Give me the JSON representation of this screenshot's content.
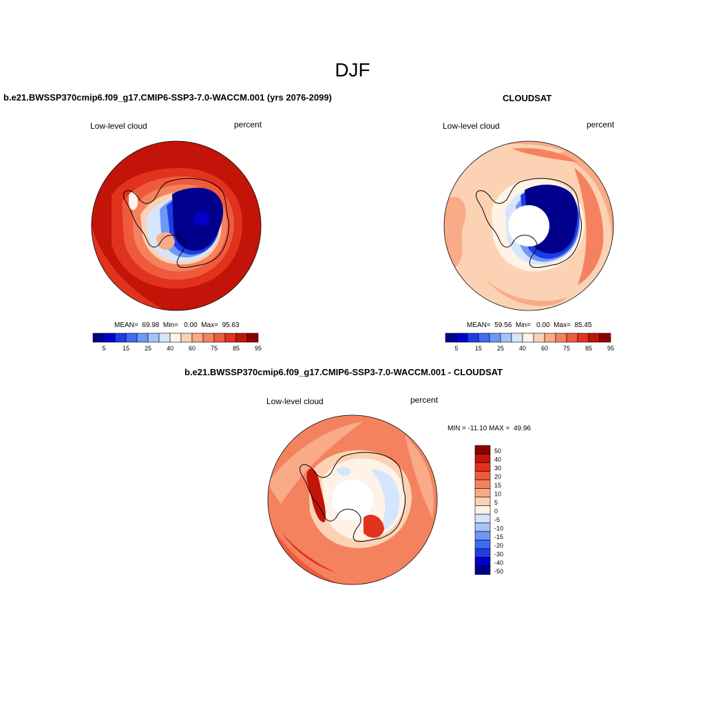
{
  "main_title": "DJF",
  "panels": [
    {
      "title": "b.e21.BWSSP370cmip6.f09_g17.CMIP6-SSP3-7.0-WACCM.001 (yrs 2076-2099)",
      "variable": "Low-level cloud",
      "units": "percent",
      "stats": "MEAN=  69.98  Min=   0.00  Max=  95.63"
    },
    {
      "title": "CLOUDSAT",
      "variable": "Low-level cloud",
      "units": "percent",
      "stats": "MEAN=  59.56  Min=   0.00  Max=  85.45"
    },
    {
      "title": "b.e21.BWSSP370cmip6.f09_g17.CMIP6-SSP3-7.0-WACCM.001 - CLOUDSAT",
      "variable": "Low-level cloud",
      "units": "percent",
      "stats": "MIN = -11.10 MAX =  49.96"
    }
  ],
  "colorbar_abs": {
    "colors": [
      "#00008c",
      "#0000c8",
      "#1e3ce6",
      "#3c6cf0",
      "#6e98f5",
      "#a5c3f8",
      "#d5e5fb",
      "#fff2e6",
      "#fcd2b4",
      "#f9aa87",
      "#f5825f",
      "#f05a3c",
      "#e1321e",
      "#c3140a",
      "#8c0000"
    ],
    "tick_labels": [
      "5",
      "15",
      "25",
      "40",
      "60",
      "75",
      "85",
      "95"
    ]
  },
  "colorbar_diff": {
    "colors": [
      "#00008c",
      "#0000c8",
      "#1e3ce6",
      "#3c6cf0",
      "#6e98f5",
      "#a5c3f8",
      "#d5e5fb",
      "#fff2e6",
      "#fcd2b4",
      "#f9aa87",
      "#f5825f",
      "#f05a3c",
      "#e1321e",
      "#c3140a",
      "#8c0000"
    ],
    "tick_labels": [
      "-50",
      "-40",
      "-30",
      "-20",
      "-15",
      "-10",
      "-5",
      "0",
      "5",
      "10",
      "15",
      "20",
      "30",
      "40",
      "50"
    ]
  }
}
